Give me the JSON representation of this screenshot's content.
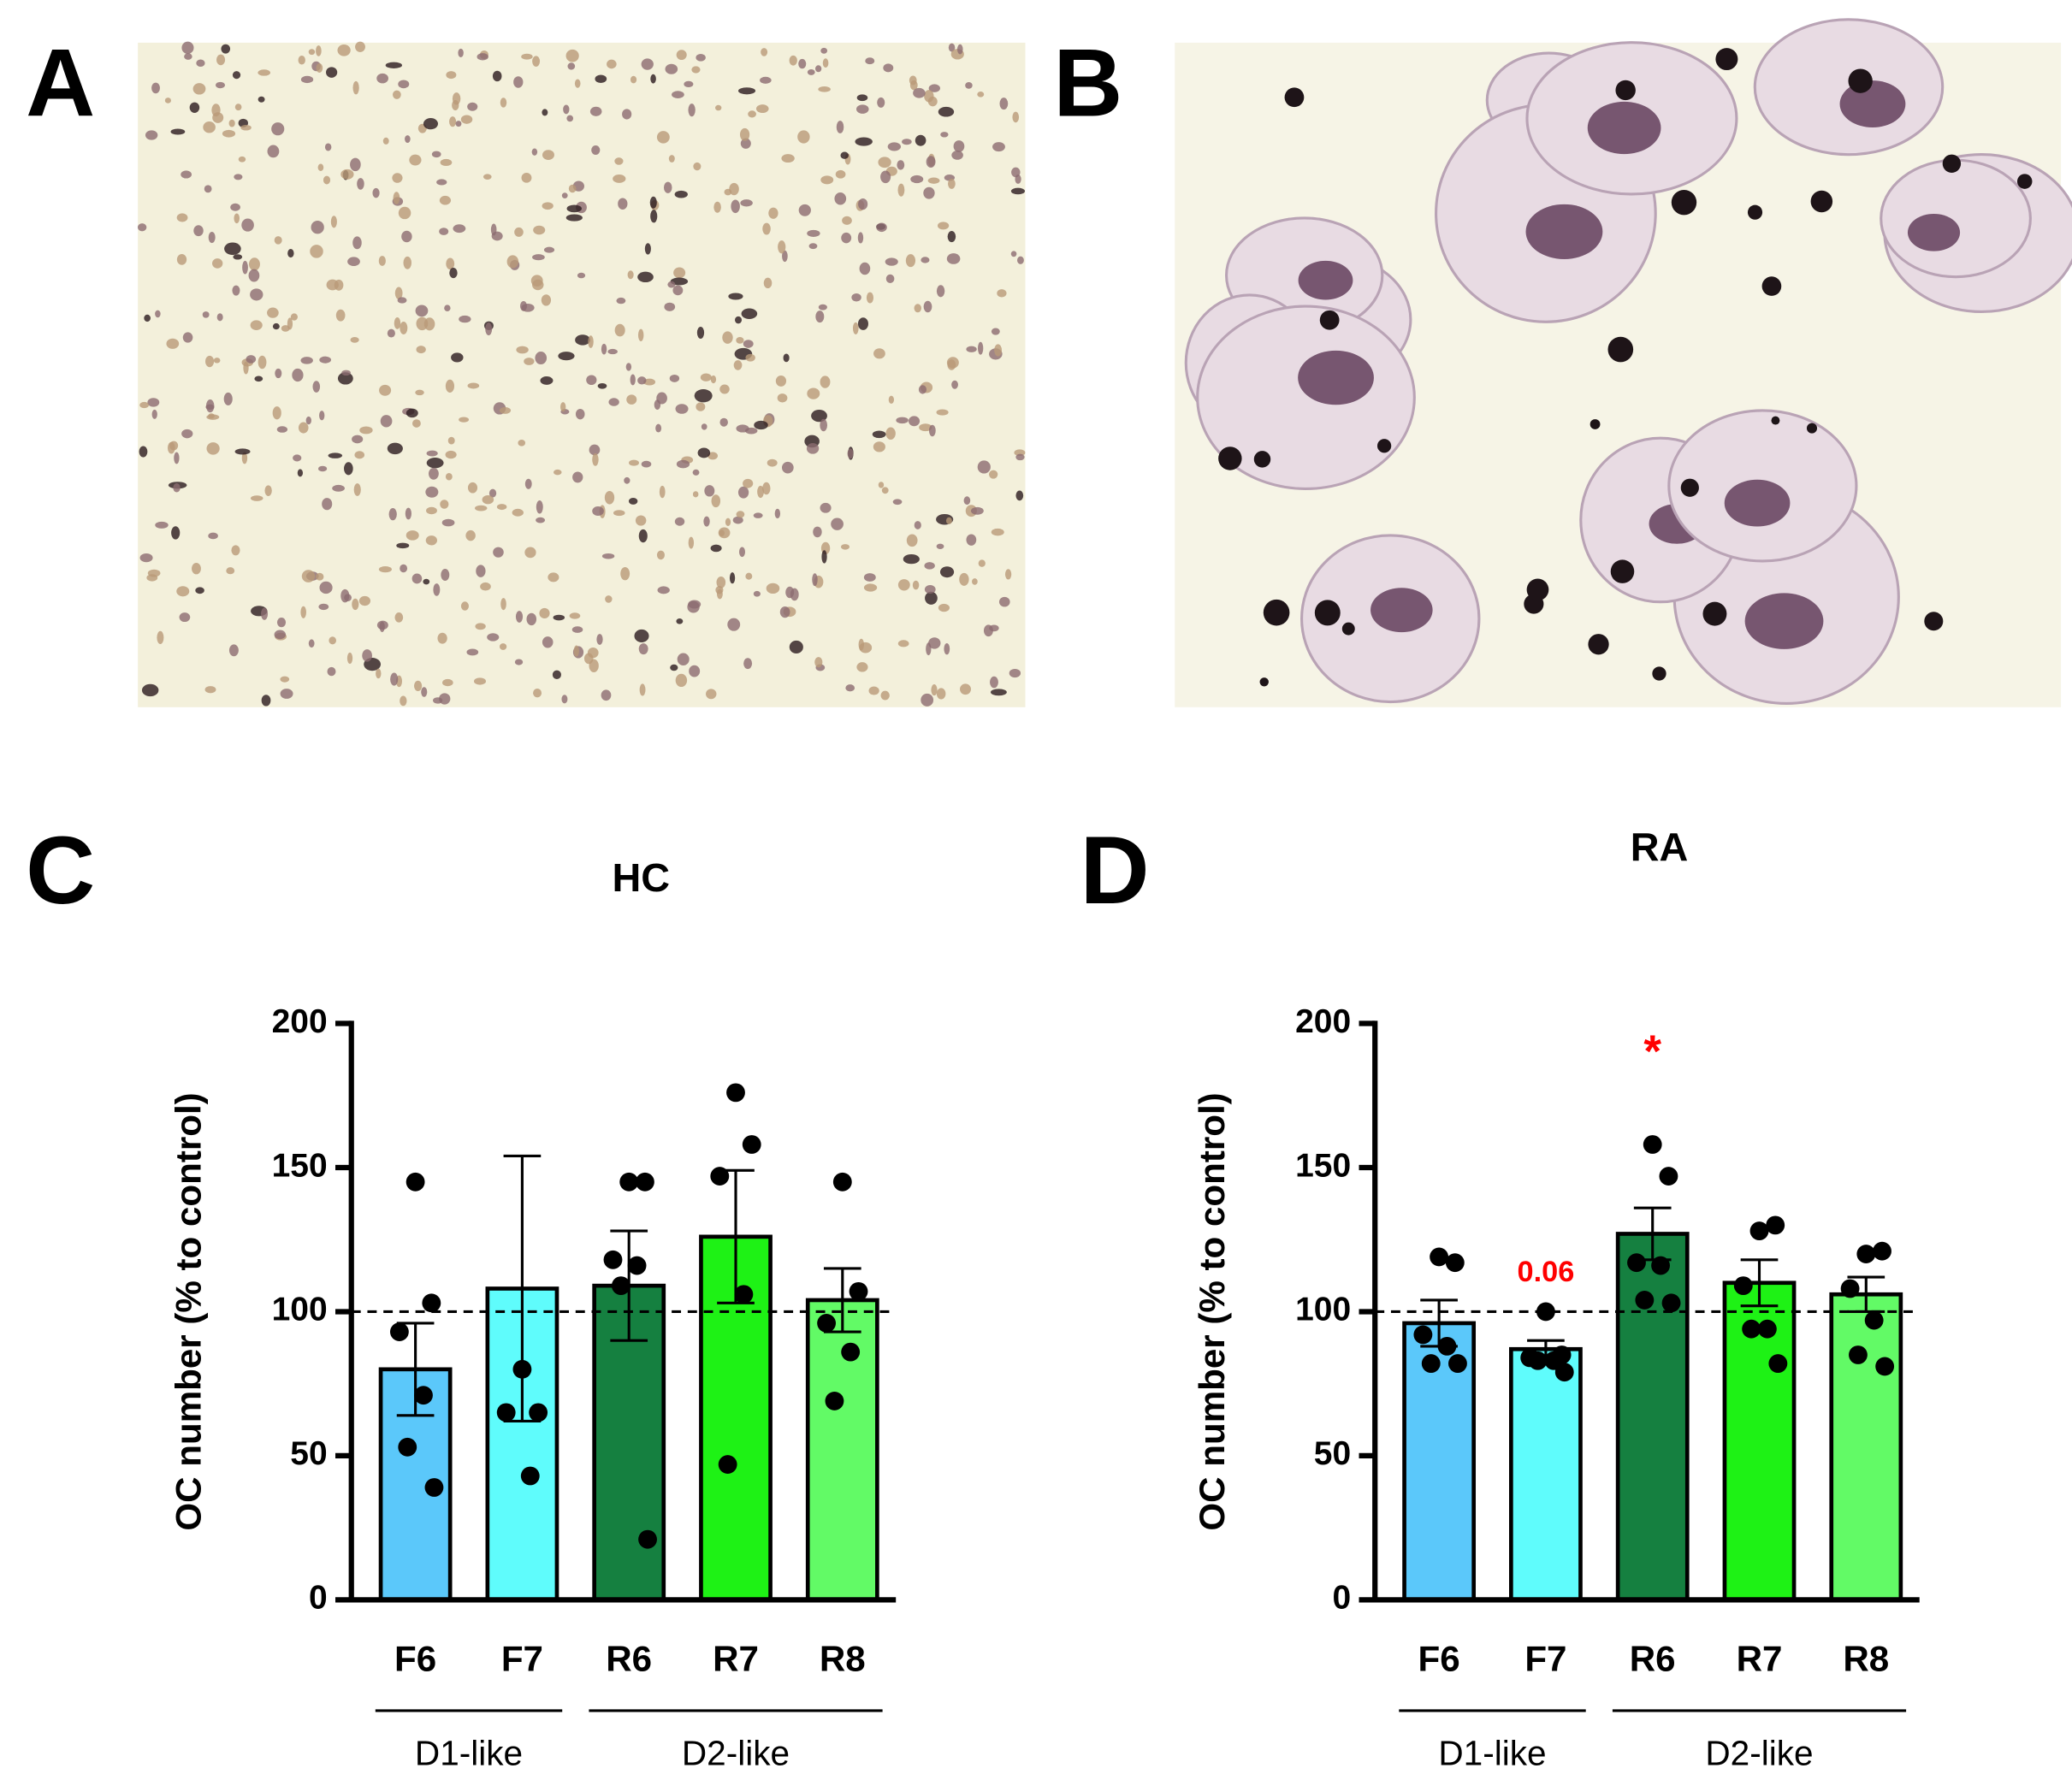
{
  "panels": [
    {
      "label": "A"
    },
    {
      "label": "B"
    }
  ],
  "chart_data": [
    {
      "type": "bar",
      "panel": "C",
      "title": "HC",
      "y_label": "OC number (% to control)",
      "categories": [
        "F6",
        "F7",
        "R6",
        "R7",
        "R8"
      ],
      "values": [
        80,
        108,
        109,
        126,
        104
      ],
      "errors": [
        16,
        46,
        19,
        23,
        11
      ],
      "points": [
        [
          145,
          103,
          93,
          71,
          53,
          39
        ],
        [
          80,
          65,
          65,
          43
        ],
        [
          145,
          145,
          118,
          116,
          109,
          21
        ],
        [
          176,
          158,
          147,
          106,
          47
        ],
        [
          145,
          107,
          96,
          86,
          69
        ]
      ],
      "colors": [
        "#5bc8fa",
        "#5ffcfc",
        "#158040",
        "#1ef215",
        "#62fa66"
      ],
      "annotations": [
        null,
        null,
        null,
        null,
        null
      ],
      "reference_line": 100,
      "groups": [
        {
          "label": "D1-like",
          "members": [
            "F6",
            "F7"
          ]
        },
        {
          "label": "D2-like",
          "members": [
            "R6",
            "R7",
            "R8"
          ]
        }
      ],
      "ylim": [
        0,
        200
      ],
      "yticks": [
        0,
        50,
        100,
        150,
        200
      ]
    },
    {
      "type": "bar",
      "panel": "D",
      "title": "RA",
      "y_label": "OC number (% to control)",
      "categories": [
        "F6",
        "F7",
        "R6",
        "R7",
        "R8"
      ],
      "values": [
        96,
        87,
        127,
        110,
        106
      ],
      "errors": [
        8,
        3,
        9,
        8,
        6
      ],
      "points": [
        [
          119,
          117,
          92,
          88,
          82,
          82
        ],
        [
          100,
          85,
          84,
          83,
          83,
          79
        ],
        [
          158,
          147,
          117,
          116,
          104,
          103
        ],
        [
          128,
          130,
          109,
          94,
          94,
          82
        ],
        [
          120,
          121,
          108,
          97,
          85,
          81
        ]
      ],
      "colors": [
        "#5bc8fa",
        "#5ffcfc",
        "#158040",
        "#1ef215",
        "#62fa66"
      ],
      "annotations": [
        null,
        "0.06",
        "*",
        null,
        null
      ],
      "annotation_color": "#ff0000",
      "reference_line": 100,
      "groups": [
        {
          "label": "D1-like",
          "members": [
            "F6",
            "F7"
          ]
        },
        {
          "label": "D2-like",
          "members": [
            "R6",
            "R7",
            "R8"
          ]
        }
      ],
      "ylim": [
        0,
        200
      ],
      "yticks": [
        0,
        50,
        100,
        150,
        200
      ]
    }
  ]
}
